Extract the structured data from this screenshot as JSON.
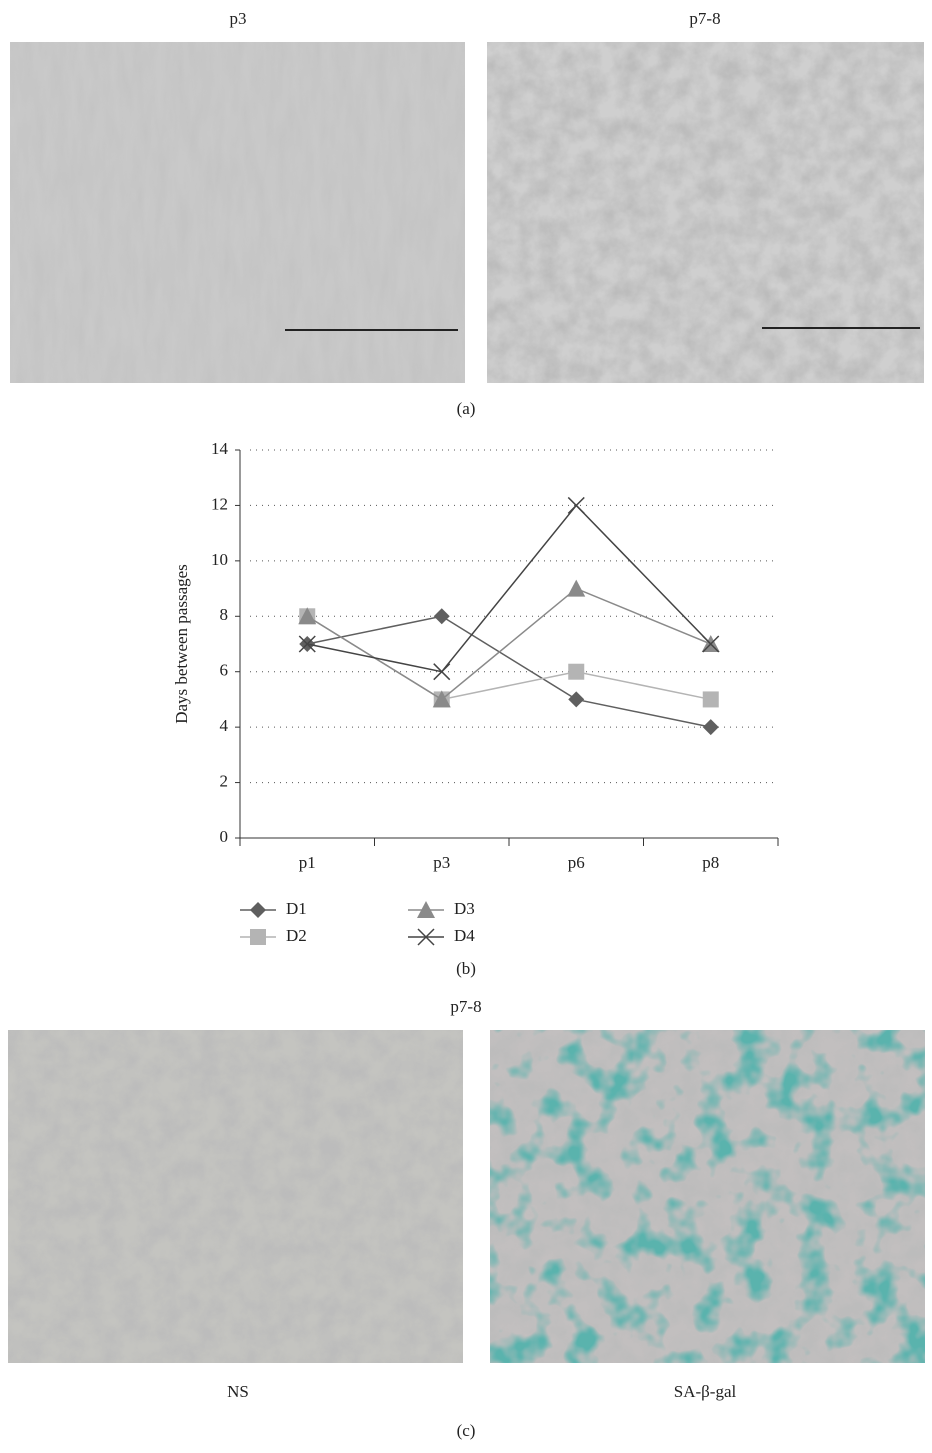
{
  "panel_a": {
    "label": "(a)",
    "images": [
      {
        "caption": "p3"
      },
      {
        "caption": "p7-8"
      }
    ]
  },
  "chart_data": {
    "type": "line",
    "label": "(b)",
    "y_label": "Days between passages",
    "categories": [
      "p1",
      "p3",
      "p6",
      "p8"
    ],
    "series": [
      {
        "name": "D1",
        "color": "#5f5f5f",
        "marker": "diamond",
        "values": [
          7,
          8,
          5,
          4
        ]
      },
      {
        "name": "D2",
        "color": "#b4b4b4",
        "marker": "square",
        "values": [
          8,
          5,
          6,
          5
        ]
      },
      {
        "name": "D3",
        "color": "#8a8a8a",
        "marker": "triangle",
        "values": [
          8,
          5,
          9,
          7
        ]
      },
      {
        "name": "D4",
        "color": "#444444",
        "marker": "x",
        "values": [
          7,
          6,
          12,
          7
        ]
      }
    ],
    "ylim": [
      0,
      14
    ],
    "yticks": [
      0,
      2,
      4,
      6,
      8,
      10,
      12,
      14
    ],
    "grid": true
  },
  "panel_c": {
    "label": "(c)",
    "title": "p7-8",
    "images": [
      {
        "caption": "NS"
      },
      {
        "caption": "SA-β-gal"
      }
    ]
  }
}
